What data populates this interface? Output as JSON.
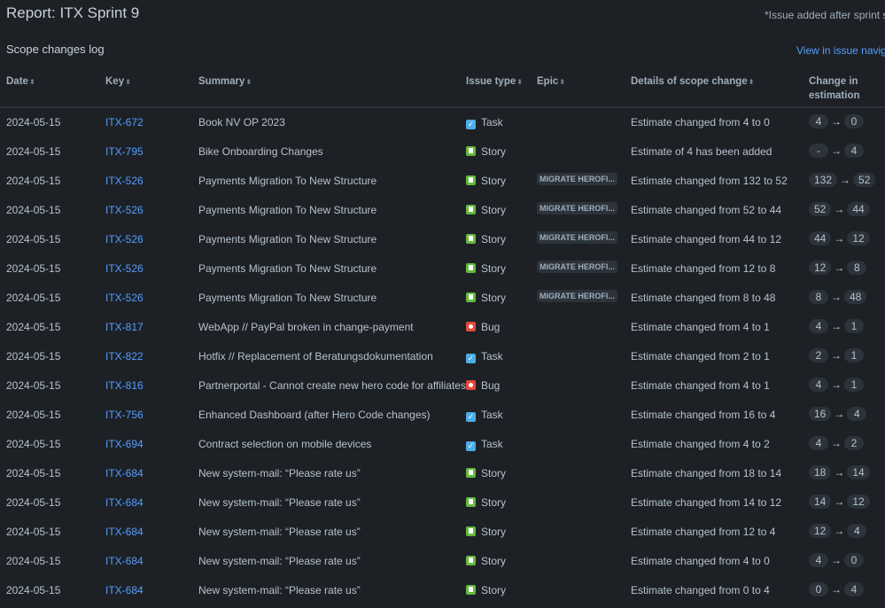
{
  "title": "Report: ITX Sprint 9",
  "note": "*Issue added after sprint start",
  "section": "Scope changes log",
  "nav_link": "View in issue navigator",
  "columns": {
    "date": "Date",
    "key": "Key",
    "summary": "Summary",
    "type": "Issue type",
    "epic": "Epic",
    "details": "Details of scope change",
    "change1": "Change in",
    "change2": "estimation"
  },
  "rows": [
    {
      "date": "2024-05-15",
      "key": "ITX-672",
      "summary": "Book NV OP 2023",
      "type": "Task",
      "epic": "",
      "details": "Estimate changed from 4 to 0",
      "from": "4",
      "to": "0"
    },
    {
      "date": "2024-05-15",
      "key": "ITX-795",
      "summary": "Bike Onboarding Changes",
      "type": "Story",
      "epic": "",
      "details": "Estimate of 4 has been added",
      "from": "-",
      "to": "4"
    },
    {
      "date": "2024-05-15",
      "key": "ITX-526",
      "summary": "Payments Migration To New Structure",
      "type": "Story",
      "epic": "MIGRATE HEROFI...",
      "details": "Estimate changed from 132 to 52",
      "from": "132",
      "to": "52"
    },
    {
      "date": "2024-05-15",
      "key": "ITX-526",
      "summary": "Payments Migration To New Structure",
      "type": "Story",
      "epic": "MIGRATE HEROFI...",
      "details": "Estimate changed from 52 to 44",
      "from": "52",
      "to": "44"
    },
    {
      "date": "2024-05-15",
      "key": "ITX-526",
      "summary": "Payments Migration To New Structure",
      "type": "Story",
      "epic": "MIGRATE HEROFI...",
      "details": "Estimate changed from 44 to 12",
      "from": "44",
      "to": "12"
    },
    {
      "date": "2024-05-15",
      "key": "ITX-526",
      "summary": "Payments Migration To New Structure",
      "type": "Story",
      "epic": "MIGRATE HEROFI...",
      "details": "Estimate changed from 12 to 8",
      "from": "12",
      "to": "8"
    },
    {
      "date": "2024-05-15",
      "key": "ITX-526",
      "summary": "Payments Migration To New Structure",
      "type": "Story",
      "epic": "MIGRATE HEROFI...",
      "details": "Estimate changed from 8 to 48",
      "from": "8",
      "to": "48"
    },
    {
      "date": "2024-05-15",
      "key": "ITX-817",
      "summary": "WebApp // PayPal broken in change-payment",
      "type": "Bug",
      "epic": "",
      "details": "Estimate changed from 4 to 1",
      "from": "4",
      "to": "1"
    },
    {
      "date": "2024-05-15",
      "key": "ITX-822",
      "summary": "Hotfix // Replacement of Beratungsdokumentation",
      "type": "Task",
      "epic": "",
      "details": "Estimate changed from 2 to 1",
      "from": "2",
      "to": "1"
    },
    {
      "date": "2024-05-15",
      "key": "ITX-816",
      "summary": "Partnerportal - Cannot create new hero code for affiliates",
      "type": "Bug",
      "epic": "",
      "details": "Estimate changed from 4 to 1",
      "from": "4",
      "to": "1"
    },
    {
      "date": "2024-05-15",
      "key": "ITX-756",
      "summary": "Enhanced Dashboard (after Hero Code changes)",
      "type": "Task",
      "epic": "",
      "details": "Estimate changed from 16 to 4",
      "from": "16",
      "to": "4"
    },
    {
      "date": "2024-05-15",
      "key": "ITX-694",
      "summary": "Contract selection on mobile devices",
      "type": "Task",
      "epic": "",
      "details": "Estimate changed from 4 to 2",
      "from": "4",
      "to": "2"
    },
    {
      "date": "2024-05-15",
      "key": "ITX-684",
      "summary": "New system-mail: “Please rate us”",
      "type": "Story",
      "epic": "",
      "details": "Estimate changed from 18 to 14",
      "from": "18",
      "to": "14"
    },
    {
      "date": "2024-05-15",
      "key": "ITX-684",
      "summary": "New system-mail: “Please rate us”",
      "type": "Story",
      "epic": "",
      "details": "Estimate changed from 14 to 12",
      "from": "14",
      "to": "12"
    },
    {
      "date": "2024-05-15",
      "key": "ITX-684",
      "summary": "New system-mail: “Please rate us”",
      "type": "Story",
      "epic": "",
      "details": "Estimate changed from 12 to 4",
      "from": "12",
      "to": "4"
    },
    {
      "date": "2024-05-15",
      "key": "ITX-684",
      "summary": "New system-mail: “Please rate us”",
      "type": "Story",
      "epic": "",
      "details": "Estimate changed from 4 to 0",
      "from": "4",
      "to": "0"
    },
    {
      "date": "2024-05-15",
      "key": "ITX-684",
      "summary": "New system-mail: “Please rate us”",
      "type": "Story",
      "epic": "",
      "details": "Estimate changed from 0 to 4",
      "from": "0",
      "to": "4"
    }
  ]
}
